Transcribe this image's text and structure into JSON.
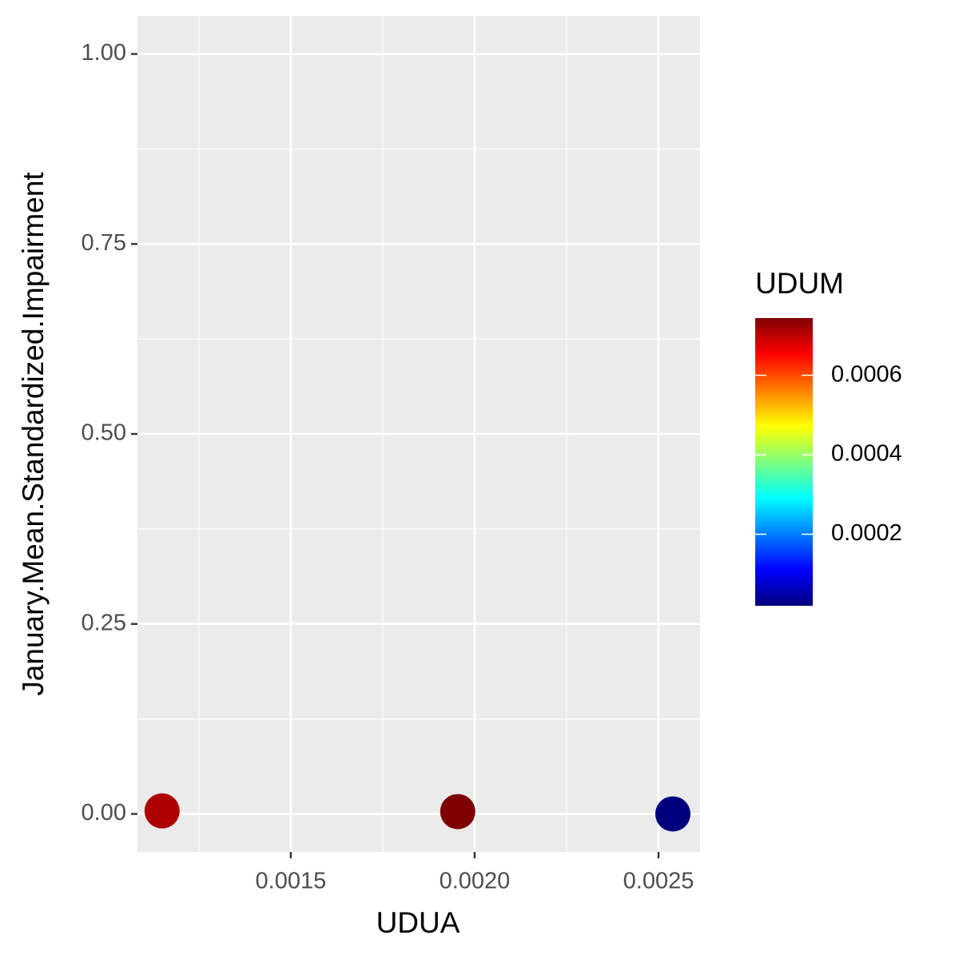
{
  "chart_data": {
    "type": "scatter",
    "x_label": "UDUA",
    "y_label": "January.Mean.Standardized.Impairment",
    "series": [
      {
        "name": "UDUM",
        "x": [
          0.00115,
          0.001954,
          0.002539
        ],
        "values": [
          0.004,
          0.003,
          0.0
        ],
        "color_values": [
          0.00071,
          0.000744,
          2e-05
        ]
      }
    ],
    "xlim": [
      0.001083,
      0.002613
    ],
    "xticks": [
      0.0015,
      0.002,
      0.0025
    ],
    "ylim": [
      -0.05,
      1.05
    ],
    "yticks": [
      {
        "value": 0,
        "label": "0.00"
      },
      0.25,
      {
        "value": 0.5,
        "label": "0.50"
      },
      0.75,
      {
        "value": 1,
        "label": "1.00"
      }
    ],
    "grid": true,
    "colorbar": {
      "title": "UDUM",
      "lim": [
        2e-05,
        0.000744
      ],
      "ticks": [
        0.0002,
        0.0004,
        0.0006
      ],
      "colors": [
        "#00007F",
        "#0000FF",
        "#007FFF",
        "#00FFFF",
        "#7FFF7F",
        "#FFFF00",
        "#FF7F00",
        "#FF0000",
        "#7F0000"
      ]
    }
  }
}
